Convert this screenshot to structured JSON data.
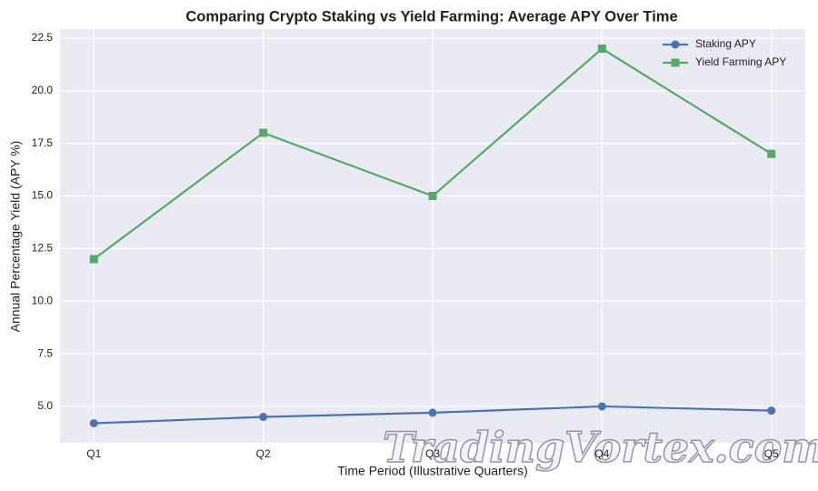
{
  "chart_data": {
    "type": "line",
    "title": "Comparing Crypto Staking vs Yield Farming: Average APY Over Time",
    "xlabel": "Time Period (Illustrative Quarters)",
    "ylabel": "Annual Percentage Yield (APY %)",
    "categories": [
      "Q1",
      "Q2",
      "Q3",
      "Q4",
      "Q5"
    ],
    "series": [
      {
        "name": "Staking APY",
        "color": "#4c72b0",
        "marker": "circle",
        "values": [
          4.2,
          4.5,
          4.7,
          5.0,
          4.8
        ]
      },
      {
        "name": "Yield Farming APY",
        "color": "#55a868",
        "marker": "square",
        "values": [
          12,
          18,
          15,
          22,
          17
        ]
      }
    ],
    "ylim": [
      3.27,
      22.93
    ],
    "yticks": [
      {
        "value": 5,
        "label": "5.0"
      },
      7.5,
      {
        "value": 10,
        "label": "10.0"
      },
      12.5,
      {
        "value": 15,
        "label": "15.0"
      },
      17.5,
      {
        "value": 20,
        "label": "20.0"
      },
      22.5
    ],
    "grid": true,
    "legend": "upper right",
    "watermark": "TradingVortex.com"
  }
}
